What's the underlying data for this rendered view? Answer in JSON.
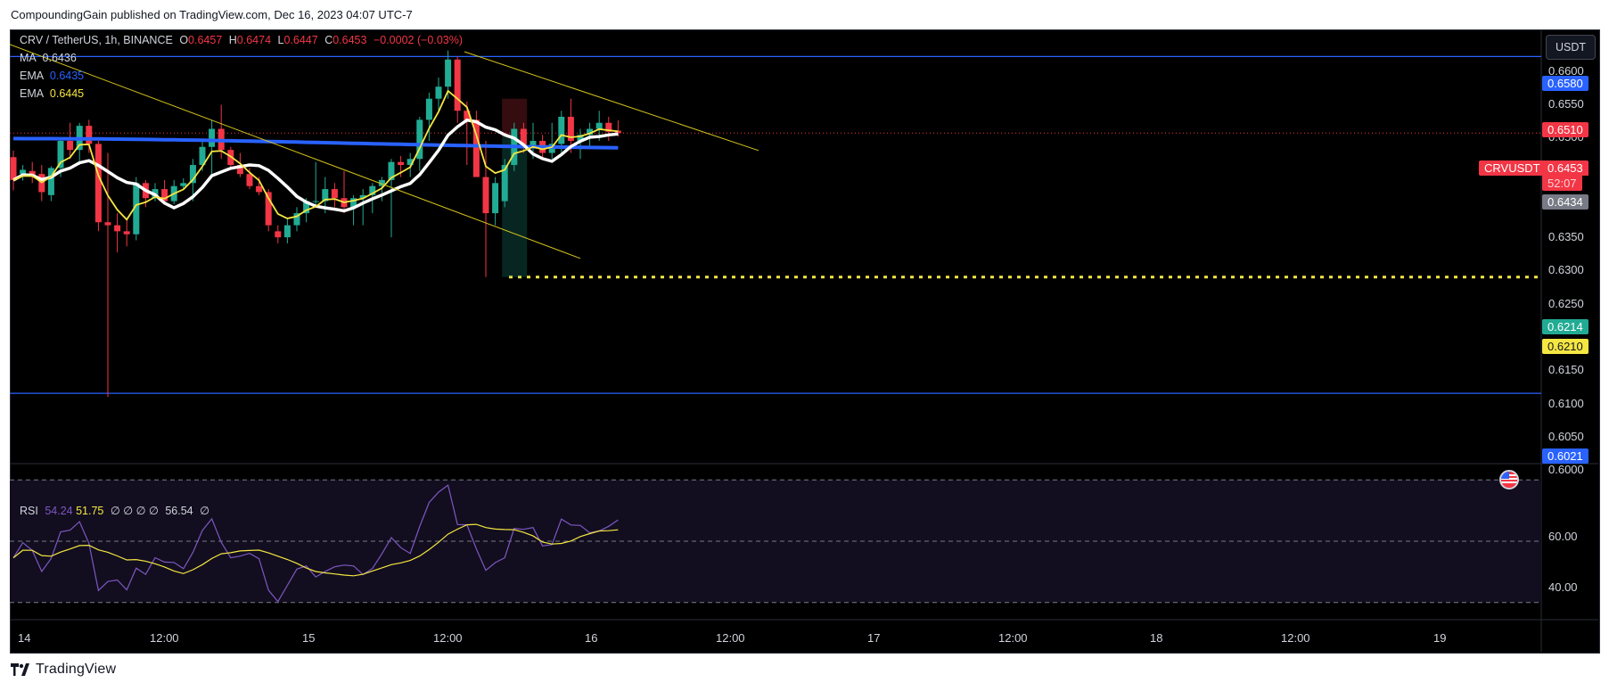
{
  "publisher_line": "CompoundingGain published on TradingView.com, Dec 16, 2023 04:07 UTC-7",
  "footer_brand": "TradingView",
  "currency_button": "USDT",
  "legend": {
    "symbol_line": "CRV / TetherUS, 1h, BINANCE",
    "open_label": "O",
    "open": "0.6457",
    "high_label": "H",
    "high": "0.6474",
    "low_label": "L",
    "low": "0.6447",
    "close_label": "C",
    "close": "0.6453",
    "change": "−0.0002 (−0.03%)",
    "ma_label": "MA",
    "ma_value": "0.6436",
    "ema1_label": "EMA",
    "ema1_value": "0.6435",
    "ema2_label": "EMA",
    "ema2_value": "0.6445",
    "rsi_label": "RSI",
    "rsi_value": "54.24",
    "rsi_ma": "51.75",
    "rsi_extra": "∅ ∅ ∅ ∅",
    "rsi_other": "56.54",
    "rsi_last": "∅"
  },
  "price_tags": {
    "line_top": "0.6580",
    "resistance": "0.6510",
    "symbol": "CRVUSDT",
    "last": "0.6453",
    "countdown": "52:07",
    "ma": "0.6434",
    "dotted": "0.6214",
    "target": "0.6210",
    "line_bottom": "0.6021"
  },
  "colors": {
    "up": "#22ab94",
    "down": "#f23645",
    "ema_fast": "#f5e642",
    "ema_slow": "#2962ff",
    "ma": "#ffffff",
    "trend": "#d4c31c",
    "rsi": "#7e57c2",
    "rsi_ma": "#f5e642",
    "tag_blue": "#2962ff",
    "tag_red": "#f23645",
    "tag_gray": "#787b86",
    "tag_green": "#22ab94",
    "tag_yellow": "#f5e642"
  },
  "chart_data": [
    {
      "type": "candlestick",
      "title": "CRV / TetherUS, 1h, BINANCE",
      "y_ticks": [
        "0.6600",
        "0.6550",
        "0.6500",
        "0.6350",
        "0.6300",
        "0.6250",
        "0.6150",
        "0.6100",
        "0.6050",
        "0.6000"
      ],
      "x_ticks": [
        "14",
        "12:00",
        "15",
        "12:00",
        "16",
        "12:00",
        "17",
        "12:00",
        "18",
        "12:00",
        "19"
      ],
      "ylim": [
        0.5965,
        0.6625
      ],
      "candles_approx": [
        [
          0.6413,
          0.6424,
          0.6358,
          0.6375
        ],
        [
          0.6385,
          0.64,
          0.6374,
          0.6392
        ],
        [
          0.639,
          0.6405,
          0.637,
          0.6382
        ],
        [
          0.6385,
          0.64,
          0.634,
          0.6355
        ],
        [
          0.635,
          0.6398,
          0.634,
          0.6395
        ],
        [
          0.6395,
          0.6445,
          0.638,
          0.644
        ],
        [
          0.644,
          0.647,
          0.641,
          0.6425
        ],
        [
          0.6425,
          0.647,
          0.64,
          0.6465
        ],
        [
          0.6465,
          0.6475,
          0.642,
          0.6435
        ],
        [
          0.6435,
          0.644,
          0.629,
          0.6305
        ],
        [
          0.6305,
          0.642,
          0.6015,
          0.63
        ],
        [
          0.63,
          0.632,
          0.6255,
          0.629
        ],
        [
          0.629,
          0.631,
          0.6265,
          0.6285
        ],
        [
          0.6285,
          0.638,
          0.6275,
          0.637
        ],
        [
          0.637,
          0.6375,
          0.633,
          0.6345
        ],
        [
          0.6345,
          0.637,
          0.634,
          0.636
        ],
        [
          0.636,
          0.6375,
          0.6335,
          0.634
        ],
        [
          0.634,
          0.6375,
          0.6335,
          0.6365
        ],
        [
          0.6365,
          0.6378,
          0.636,
          0.637
        ],
        [
          0.637,
          0.641,
          0.634,
          0.64
        ],
        [
          0.64,
          0.644,
          0.639,
          0.643
        ],
        [
          0.643,
          0.6475,
          0.638,
          0.646
        ],
        [
          0.646,
          0.65,
          0.641,
          0.6425
        ],
        [
          0.6425,
          0.643,
          0.6395,
          0.64
        ],
        [
          0.64,
          0.642,
          0.638,
          0.6385
        ],
        [
          0.6385,
          0.6395,
          0.636,
          0.6365
        ],
        [
          0.6365,
          0.638,
          0.635,
          0.6355
        ],
        [
          0.6355,
          0.636,
          0.629,
          0.63
        ],
        [
          0.629,
          0.63,
          0.627,
          0.628
        ],
        [
          0.628,
          0.631,
          0.627,
          0.63
        ],
        [
          0.63,
          0.633,
          0.629,
          0.632
        ],
        [
          0.632,
          0.6345,
          0.6305,
          0.634
        ],
        [
          0.634,
          0.6405,
          0.633,
          0.634
        ],
        [
          0.634,
          0.638,
          0.632,
          0.636
        ],
        [
          0.636,
          0.637,
          0.633,
          0.6345
        ],
        [
          0.6345,
          0.639,
          0.632,
          0.633
        ],
        [
          0.633,
          0.635,
          0.63,
          0.6345
        ],
        [
          0.6345,
          0.636,
          0.63,
          0.635
        ],
        [
          0.635,
          0.637,
          0.632,
          0.6365
        ],
        [
          0.6365,
          0.638,
          0.634,
          0.6375
        ],
        [
          0.6375,
          0.641,
          0.628,
          0.6405
        ],
        [
          0.6405,
          0.6415,
          0.638,
          0.64
        ],
        [
          0.64,
          0.642,
          0.638,
          0.641
        ],
        [
          0.641,
          0.648,
          0.639,
          0.6475
        ],
        [
          0.6475,
          0.652,
          0.644,
          0.651
        ],
        [
          0.651,
          0.6545,
          0.649,
          0.653
        ],
        [
          0.653,
          0.659,
          0.651,
          0.6575
        ],
        [
          0.6575,
          0.658,
          0.647,
          0.649
        ],
        [
          0.649,
          0.6505,
          0.64,
          0.6475
        ],
        [
          0.6475,
          0.649,
          0.644,
          0.638
        ],
        [
          0.638,
          0.644,
          0.6214,
          0.632
        ],
        [
          0.632,
          0.638,
          0.63,
          0.637
        ],
        [
          0.634,
          0.641,
          0.633,
          0.64
        ],
        [
          0.64,
          0.647,
          0.639,
          0.646
        ],
        [
          0.646,
          0.647,
          0.642,
          0.643
        ],
        [
          0.643,
          0.647,
          0.641,
          0.644
        ],
        [
          0.644,
          0.645,
          0.641,
          0.642
        ],
        [
          0.642,
          0.647,
          0.641,
          0.6435
        ],
        [
          0.6435,
          0.649,
          0.642,
          0.648
        ],
        [
          0.648,
          0.651,
          0.642,
          0.644
        ],
        [
          0.644,
          0.646,
          0.641,
          0.645
        ],
        [
          0.645,
          0.647,
          0.643,
          0.646
        ],
        [
          0.646,
          0.649,
          0.644,
          0.647
        ],
        [
          0.647,
          0.648,
          0.644,
          0.6455
        ],
        [
          0.6457,
          0.6474,
          0.6447,
          0.6453
        ]
      ],
      "trendline_upper": [
        [
          0.66,
          0
        ],
        [
          0.6395,
          43
        ],
        [
          0.6588,
          50
        ],
        [
          0.6424,
          80
        ]
      ],
      "horizontal_lines": [
        0.658,
        0.6021
      ],
      "dotted_line": 0.6214
    },
    {
      "type": "line",
      "title": "RSI",
      "y_ticks": [
        "60.00",
        "40.00"
      ],
      "ylim": [
        25,
        75
      ],
      "bands": [
        70,
        50,
        30
      ]
    }
  ]
}
